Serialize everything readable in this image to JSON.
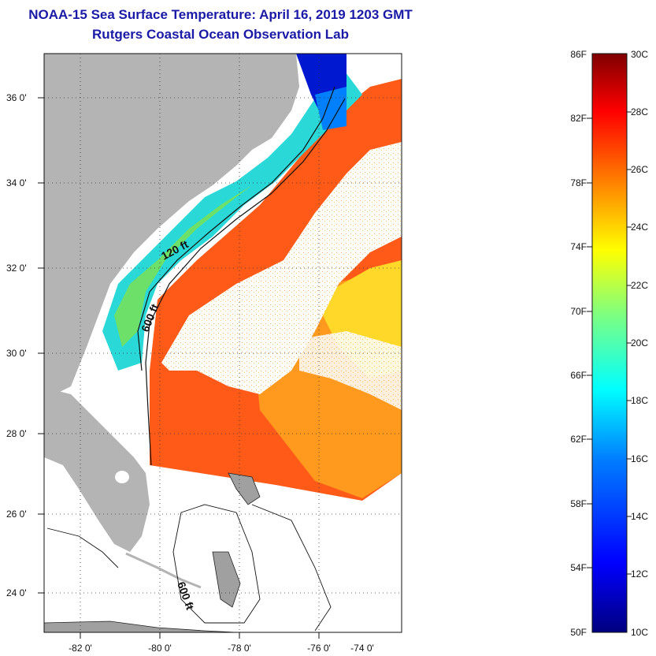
{
  "title": "NOAA-15 Sea Surface Temperature:  April 16, 2019 1203 GMT",
  "subtitle": "Rutgers Coastal Ocean Observation Lab",
  "map": {
    "lat_labels": [
      "36 0'",
      "34 0'",
      "32 0'",
      "30 0'",
      "28 0'",
      "26 0'",
      "24 0'"
    ],
    "lon_labels": [
      "-82 0'",
      "-80 0'",
      "-78 0'",
      "-76 0'",
      "-74 0'"
    ],
    "contour_labels": [
      "120 ft",
      "600 ft",
      "600 ft"
    ],
    "colors": {
      "land": "#b4b4b4",
      "ocean_warm": "#ff4a16",
      "ocean_cool": "#20d0e6",
      "cloud": "#ffffff"
    }
  },
  "colorbar": {
    "fahrenheit_labels": [
      "86F",
      "82F",
      "78F",
      "74F",
      "70F",
      "66F",
      "62F",
      "58F",
      "54F",
      "50F"
    ],
    "celsius_labels": [
      "30C",
      "28C",
      "26C",
      "24C",
      "22C",
      "20C",
      "18C",
      "16C",
      "14C",
      "12C",
      "10C"
    ],
    "colors": [
      "#00007f",
      "#0000ff",
      "#007fff",
      "#00ffff",
      "#7fff7f",
      "#ffff00",
      "#ff7f00",
      "#ff0000",
      "#7f0000"
    ]
  }
}
